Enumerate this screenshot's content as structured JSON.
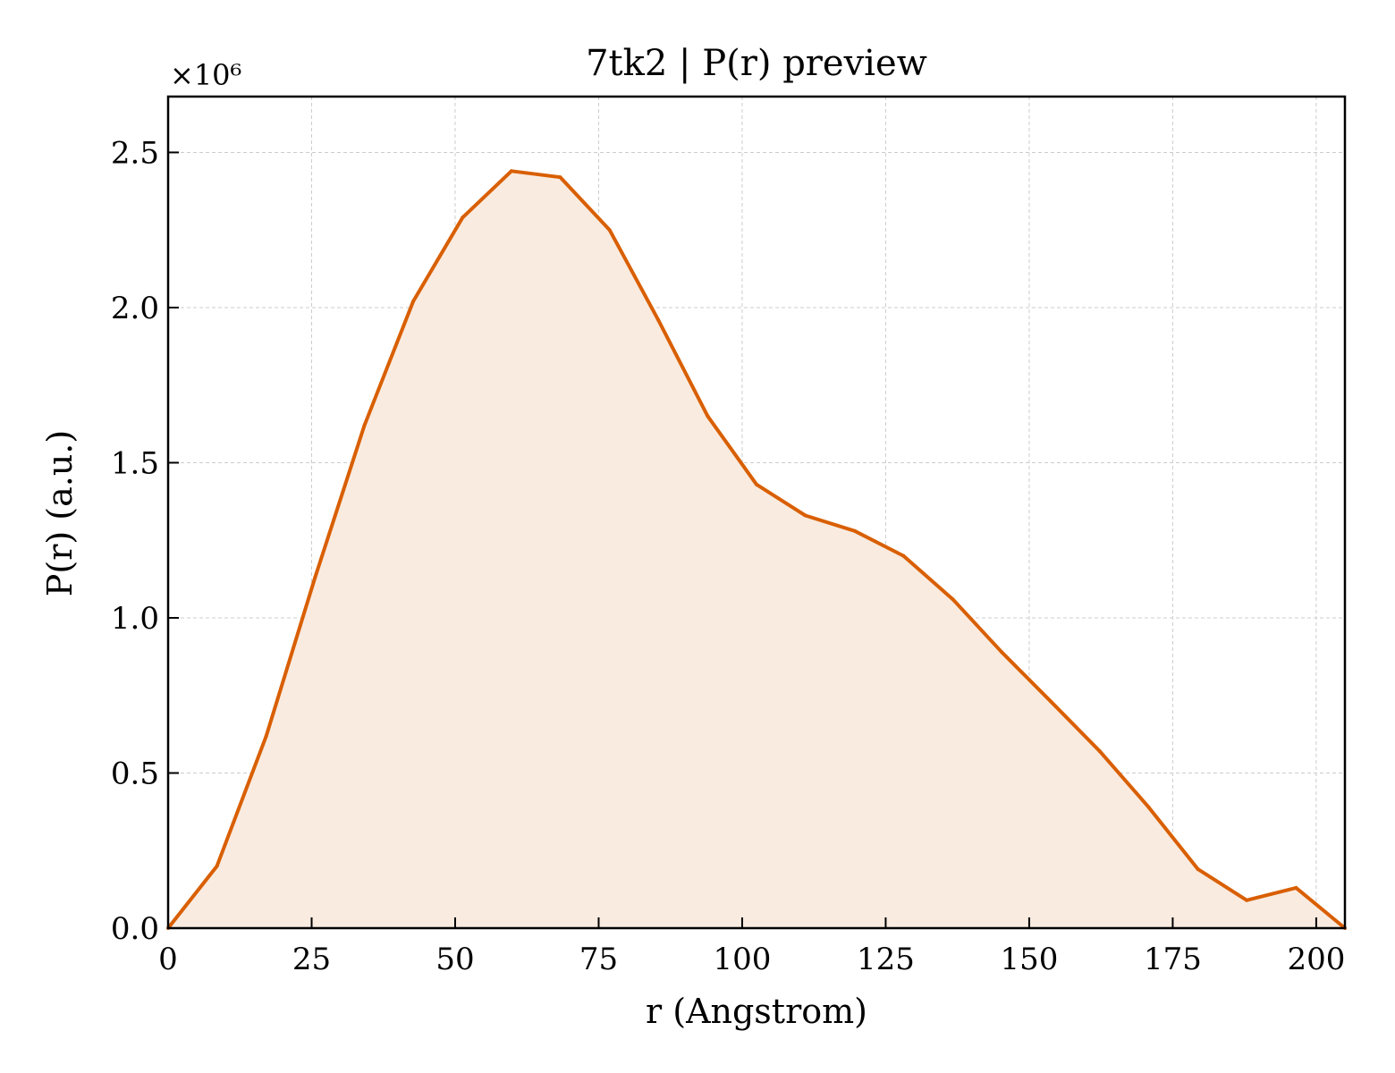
{
  "chart_data": {
    "type": "area",
    "title": "7tk2 | P(r) preview",
    "xlabel": "r (Angstrom)",
    "ylabel": "P(r) (a.u.)",
    "y_scale_label": "×10⁶",
    "y_multiplier": 1000000,
    "xlim": [
      0,
      205
    ],
    "ylim": [
      0,
      2.68
    ],
    "x_ticks": [
      0,
      25,
      50,
      75,
      100,
      125,
      150,
      175,
      200
    ],
    "x_tick_labels": [
      "0",
      "25",
      "50",
      "75",
      "100",
      "125",
      "150",
      "175",
      "200"
    ],
    "y_ticks": [
      0,
      0.5,
      1.0,
      1.5,
      2.0,
      2.5
    ],
    "y_tick_labels": [
      "0.0",
      "0.5",
      "1.0",
      "1.5",
      "2.0",
      "2.5"
    ],
    "grid": true,
    "legend": "none",
    "line_color": "#d95f02",
    "fill_color": "#f9ebe0",
    "series": [
      {
        "x": [
          0,
          8.5,
          17.1,
          25.6,
          34.2,
          42.7,
          51.3,
          59.8,
          68.3,
          76.9,
          85.4,
          94.0,
          102.5,
          111.0,
          119.6,
          128.1,
          136.7,
          145.2,
          153.8,
          162.3,
          170.8,
          179.4,
          187.9,
          196.5,
          205.0
        ],
        "y": [
          0.0,
          0.2,
          0.62,
          1.13,
          1.62,
          2.02,
          2.29,
          2.44,
          2.42,
          2.25,
          1.96,
          1.65,
          1.43,
          1.33,
          1.28,
          1.2,
          1.06,
          0.89,
          0.73,
          0.57,
          0.39,
          0.19,
          0.09,
          0.13,
          0.0
        ]
      }
    ]
  }
}
